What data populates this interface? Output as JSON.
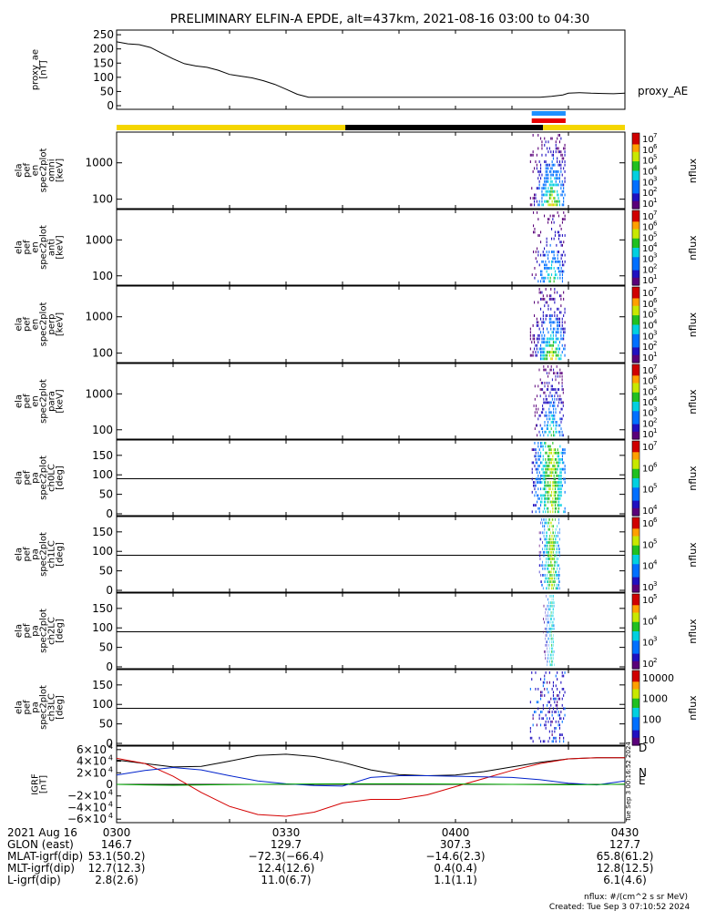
{
  "title": "PRELIMINARY ELFIN-A EPDE, alt=437km, 2021-08-16 03:00 to 04:30",
  "colors": {
    "background": "#ffffff",
    "axis": "#000000",
    "yellow_bar": "#f5d600",
    "black_bar": "#000000",
    "blue_marker": "#1e90ff",
    "red_marker": "#e60000",
    "proxy_line": "#000000",
    "grf_total": "#000000",
    "grf_d": "#d40000",
    "grf_n": "#0022cc",
    "grf_e": "#00aa00"
  },
  "chart_data": [
    {
      "type": "line",
      "id": "proxy_ae",
      "ylabel": [
        "proxy_ae",
        "[nT]"
      ],
      "legend": "proxy_AE",
      "ylim": [
        0,
        260
      ],
      "yticks": [
        "250",
        "200",
        "150",
        "100",
        "50",
        "0"
      ],
      "ytick_values": [
        250,
        200,
        150,
        100,
        50,
        0
      ],
      "xlim": [
        0,
        90
      ],
      "x": [
        0,
        2,
        4,
        6,
        8,
        10,
        12,
        14,
        16,
        18,
        20,
        22,
        24,
        26,
        28,
        30,
        32,
        34,
        36,
        38,
        40,
        45,
        50,
        55,
        60,
        65,
        70,
        75,
        77,
        79,
        80,
        82,
        84,
        86,
        88,
        90
      ],
      "y": [
        225,
        218,
        215,
        205,
        185,
        165,
        148,
        140,
        135,
        125,
        110,
        104,
        98,
        88,
        75,
        58,
        40,
        30,
        30,
        30,
        30,
        30,
        30,
        30,
        30,
        30,
        30,
        30,
        33,
        38,
        44,
        46,
        44,
        43,
        42,
        44
      ]
    },
    {
      "type": "table",
      "id": "orbit_bar",
      "segments": [
        {
          "from": 0,
          "to": 40.5,
          "color": "yellow"
        },
        {
          "from": 40.5,
          "to": 75.5,
          "color": "black"
        },
        {
          "from": 75.5,
          "to": 90,
          "color": "yellow"
        }
      ],
      "markers": [
        {
          "from": 73.5,
          "to": 79.5,
          "color": "blue"
        },
        {
          "from": 73.5,
          "to": 79.5,
          "color": "red"
        }
      ]
    },
    {
      "type": "heatmap",
      "id": "ela_pef_en_spec2plot_omni",
      "ylabel": [
        "ela",
        "pef",
        "en",
        "spec2plot",
        "omni",
        "[keV]"
      ],
      "ylog": true,
      "ylim": [
        55,
        7000
      ],
      "yticks": [
        "1000",
        "100"
      ],
      "ytick_values": [
        1000,
        100
      ],
      "colorbar": {
        "label": "nflux",
        "ticks": [
          "10",
          "10",
          "10",
          "10",
          "10",
          "10",
          "10"
        ],
        "exponents": [
          "7",
          "6",
          "5",
          "4",
          "3",
          "2",
          "1"
        ]
      },
      "activity": [
        {
          "x_from": 73.2,
          "x_to": 79.5,
          "intensity": "high"
        }
      ]
    },
    {
      "type": "heatmap",
      "id": "ela_pef_en_spec2plot_anti",
      "ylabel": [
        "ela",
        "pef",
        "en",
        "spec2plot",
        "anti",
        "[keV]"
      ],
      "ylog": true,
      "ylim": [
        55,
        7000
      ],
      "yticks": [
        "1000",
        "100"
      ],
      "ytick_values": [
        1000,
        100
      ],
      "colorbar": {
        "label": "nflux",
        "ticks": [
          "10",
          "10",
          "10",
          "10",
          "10",
          "10",
          "10"
        ],
        "exponents": [
          "7",
          "6",
          "5",
          "4",
          "3",
          "2",
          "1"
        ]
      },
      "activity": [
        {
          "x_from": 73.5,
          "x_to": 79.5,
          "intensity": "medium"
        }
      ]
    },
    {
      "type": "heatmap",
      "id": "ela_pef_en_spec2plot_perp",
      "ylabel": [
        "ela",
        "pef",
        "en",
        "spec2plot",
        "perp",
        "[keV]"
      ],
      "ylog": true,
      "ylim": [
        55,
        7000
      ],
      "yticks": [
        "1000",
        "100"
      ],
      "ytick_values": [
        1000,
        100
      ],
      "colorbar": {
        "label": "nflux",
        "ticks": [
          "10",
          "10",
          "10",
          "10",
          "10",
          "10",
          "10"
        ],
        "exponents": [
          "7",
          "6",
          "5",
          "4",
          "3",
          "2",
          "1"
        ]
      },
      "activity": [
        {
          "x_from": 73.2,
          "x_to": 79.5,
          "intensity": "high"
        }
      ]
    },
    {
      "type": "heatmap",
      "id": "ela_pef_en_spec2plot_para",
      "ylabel": [
        "ela",
        "pef",
        "en",
        "spec2plot",
        "para",
        "[keV]"
      ],
      "ylog": true,
      "ylim": [
        55,
        7000
      ],
      "yticks": [
        "1000",
        "100"
      ],
      "ytick_values": [
        1000,
        100
      ],
      "colorbar": {
        "label": "nflux",
        "ticks": [
          "10",
          "10",
          "10",
          "10",
          "10",
          "10",
          "10"
        ],
        "exponents": [
          "7",
          "6",
          "5",
          "4",
          "3",
          "2",
          "1"
        ]
      },
      "activity": [
        {
          "x_from": 73.8,
          "x_to": 79.2,
          "intensity": "medium"
        }
      ]
    },
    {
      "type": "heatmap",
      "id": "ela_pef_pa_spec2plot_ch0LC",
      "ylabel": [
        "ela",
        "pef",
        "pa",
        "spec2plot",
        "ch0LC",
        "[deg]"
      ],
      "ylim": [
        0,
        180
      ],
      "yticks": [
        "150",
        "100",
        "50",
        "0"
      ],
      "ytick_values": [
        150,
        100,
        50,
        0
      ],
      "reference_line": 90,
      "colorbar": {
        "label": "nflux",
        "ticks": [
          "10",
          "10",
          "10",
          "10"
        ],
        "exponents": [
          "7",
          "6",
          "5",
          "4"
        ]
      },
      "activity": [
        {
          "x_from": 73.5,
          "x_to": 79.5,
          "intensity": "high"
        }
      ]
    },
    {
      "type": "heatmap",
      "id": "ela_pef_pa_spec2plot_ch1LC",
      "ylabel": [
        "ela",
        "pef",
        "pa",
        "spec2plot",
        "ch1LC",
        "[deg]"
      ],
      "ylim": [
        0,
        180
      ],
      "yticks": [
        "150",
        "100",
        "50",
        "0"
      ],
      "ytick_values": [
        150,
        100,
        50,
        0
      ],
      "reference_line": 90,
      "colorbar": {
        "label": "nflux",
        "ticks": [
          "10",
          "10",
          "10",
          "10"
        ],
        "exponents": [
          "6",
          "5",
          "4",
          "3"
        ]
      },
      "activity": [
        {
          "x_from": 74.8,
          "x_to": 78.5,
          "intensity": "high"
        }
      ]
    },
    {
      "type": "heatmap",
      "id": "ela_pef_pa_spec2plot_ch2LC",
      "ylabel": [
        "ela",
        "pef",
        "pa",
        "spec2plot",
        "ch2LC",
        "[deg]"
      ],
      "ylim": [
        0,
        180
      ],
      "yticks": [
        "150",
        "100",
        "50",
        "0"
      ],
      "ytick_values": [
        150,
        100,
        50,
        0
      ],
      "reference_line": 90,
      "colorbar": {
        "label": "nflux",
        "ticks": [
          "10",
          "10",
          "10",
          "10"
        ],
        "exponents": [
          "5",
          "4",
          "3",
          "2"
        ]
      },
      "activity": [
        {
          "x_from": 75.5,
          "x_to": 77.5,
          "intensity": "medium"
        }
      ]
    },
    {
      "type": "heatmap",
      "id": "ela_pef_pa_spec2plot_ch3LC",
      "ylabel": [
        "ela",
        "pef",
        "pa",
        "spec2plot",
        "ch3LC",
        "[deg]"
      ],
      "ylim": [
        0,
        180
      ],
      "yticks": [
        "150",
        "100",
        "50",
        "0"
      ],
      "ytick_values": [
        150,
        100,
        50,
        0
      ],
      "reference_line": 90,
      "colorbar": {
        "label": "nflux",
        "ticks_plain": [
          "10000",
          "1000",
          "100",
          "10"
        ]
      },
      "activity": [
        {
          "x_from": 73.2,
          "x_to": 79.5,
          "intensity": "low"
        }
      ]
    },
    {
      "type": "line",
      "id": "igrf",
      "ylabel": [
        "IGRF",
        "[nT]"
      ],
      "ylim": [
        -66000,
        66000
      ],
      "yticks": [
        "6×10",
        "4×10",
        "2×10",
        "0",
        "−2×10",
        "−4×10",
        "−6×10"
      ],
      "ytick_exponent": "4",
      "ytick_values": [
        60000,
        40000,
        20000,
        0,
        -20000,
        -40000,
        -60000
      ],
      "legend": [
        "D",
        "N",
        "E"
      ],
      "side_stamp": "Tue Sep 3 00:16:52 2024",
      "x": [
        0,
        5,
        10,
        15,
        20,
        25,
        30,
        35,
        40,
        45,
        50,
        55,
        60,
        65,
        70,
        75,
        80,
        85,
        90
      ],
      "series": [
        {
          "values": [
            42000,
            36000,
            30000,
            31000,
            40000,
            50000,
            52000,
            48000,
            38000,
            25000,
            17000,
            15000,
            16000,
            22000,
            30000,
            38000,
            44000,
            46000,
            46000
          ]
        },
        {
          "name": "D",
          "values": [
            45000,
            36000,
            14000,
            -14000,
            -38000,
            -52000,
            -55000,
            -48000,
            -32000,
            -26000,
            -26000,
            -18000,
            -4000,
            10000,
            24000,
            36000,
            44000,
            46000,
            46000
          ]
        },
        {
          "name": "N",
          "values": [
            16000,
            24000,
            29000,
            25000,
            15000,
            6000,
            1000,
            -2000,
            -3000,
            12000,
            15000,
            15000,
            14000,
            13000,
            12000,
            8000,
            2000,
            -1000,
            6000
          ]
        },
        {
          "name": "E",
          "values": [
            0,
            -1000,
            -1500,
            -1000,
            -500,
            0,
            500,
            800,
            1000,
            1000,
            1000,
            800,
            600,
            400,
            0,
            -300,
            -800,
            -500,
            400
          ]
        }
      ]
    }
  ],
  "x_labels": [
    {
      "label": "0300",
      "x": 0
    },
    {
      "label": "0330",
      "x": 30
    },
    {
      "label": "0400",
      "x": 60
    },
    {
      "label": "0430",
      "x": 90
    }
  ],
  "ephemeris": {
    "date": "2021 Aug 16",
    "rows": [
      {
        "name": "GLON (east)",
        "values": [
          "146.7",
          "129.7",
          "307.3",
          "127.7"
        ]
      },
      {
        "name": "MLAT-igrf(dip)",
        "values": [
          "53.1(50.2)",
          "−72.3(−66.4)",
          "−14.6(2.3)",
          "65.8(61.2)"
        ]
      },
      {
        "name": "MLT-igrf(dip)",
        "values": [
          "12.7(12.3)",
          "12.4(12.6)",
          "0.4(0.4)",
          "12.8(12.5)"
        ]
      },
      {
        "name": "L-igrf(dip)",
        "values": [
          "2.8(2.6)",
          "11.0(6.7)",
          "1.1(1.1)",
          "6.1(4.6)"
        ]
      }
    ]
  },
  "footer": {
    "units": "nflux: #/(cm^2 s sr MeV)",
    "created": "Created: Tue Sep  3 07:10:52 2024"
  }
}
